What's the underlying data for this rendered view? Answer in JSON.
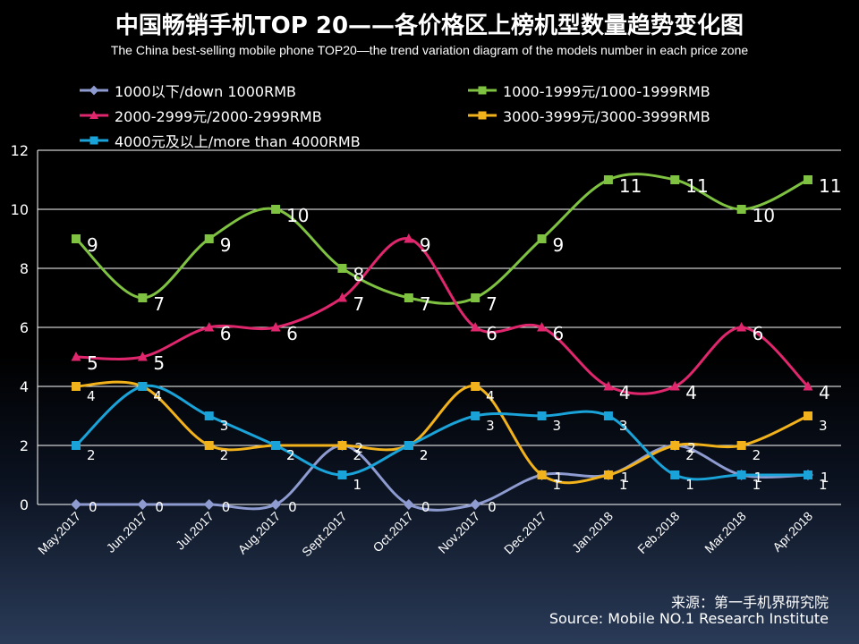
{
  "title": "中国畅销手机TOP 20——各价格区上榜机型数量趋势变化图",
  "subtitle": "The China best-selling mobile phone TOP20—the trend variation diagram of the models number in each price zone",
  "source_cn": "来源：第一手机界研究院",
  "source_en": "Source: Mobile NO.1 Research Institute",
  "colors": {
    "background": "#000000",
    "grid": "#ffffff"
  },
  "chart_data": {
    "type": "line",
    "categories": [
      "May.2017",
      "Jun.2017",
      "Jul.2017",
      "Aug.2017",
      "Sept.2017",
      "Oct.2017",
      "Nov.2017",
      "Dec.2017",
      "Jan.2018",
      "Feb.2018",
      "Mar.2018",
      "Apr.2018"
    ],
    "ylim": [
      0,
      12
    ],
    "yticks": [
      0,
      2,
      4,
      6,
      8,
      10,
      12
    ],
    "grid": true,
    "series": [
      {
        "name": "1000以下/down 1000RMB",
        "color": "#8e9bd0",
        "marker": "diamond",
        "values": [
          0,
          0,
          0,
          0,
          2,
          0,
          0,
          1,
          1,
          2,
          1,
          1
        ]
      },
      {
        "name": "1000-1999元/1000-1999RMB",
        "color": "#7fc241",
        "marker": "square",
        "values": [
          9,
          7,
          9,
          10,
          8,
          7,
          7,
          9,
          11,
          11,
          10,
          11
        ]
      },
      {
        "name": "2000-2999元/2000-2999RMB",
        "color": "#e0276e",
        "marker": "triangle",
        "values": [
          5,
          5,
          6,
          6,
          7,
          9,
          6,
          6,
          4,
          4,
          6,
          4
        ]
      },
      {
        "name": "3000-3999元/3000-3999RMB",
        "color": "#f2b21b",
        "marker": "square",
        "values": [
          4,
          4,
          2,
          2,
          2,
          2,
          4,
          1,
          1,
          2,
          2,
          3
        ]
      },
      {
        "name": "4000元及以上/more than 4000RMB",
        "color": "#1aa3d9",
        "marker": "square",
        "values": [
          2,
          4,
          3,
          2,
          1,
          2,
          3,
          3,
          3,
          1,
          1,
          1
        ]
      }
    ]
  }
}
